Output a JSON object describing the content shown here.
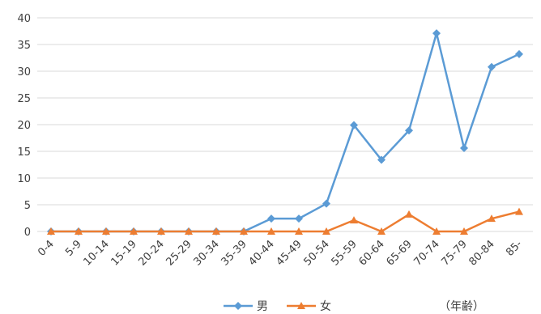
{
  "chart_data": {
    "type": "line",
    "categories": [
      "0-4",
      "5-9",
      "10-14",
      "15-19",
      "20-24",
      "25-29",
      "30-34",
      "35-39",
      "40-44",
      "45-49",
      "50-54",
      "55-59",
      "60-64",
      "65-69",
      "70-74",
      "75-79",
      "80-84",
      "85-"
    ],
    "series": [
      {
        "name": "男",
        "color": "#5B9BD5",
        "marker": "diamond",
        "values": [
          0,
          0,
          0,
          0,
          0,
          0,
          0,
          0,
          2.4,
          2.4,
          5.2,
          19.9,
          13.4,
          18.9,
          37.1,
          15.6,
          30.8,
          33.2
        ]
      },
      {
        "name": "女",
        "color": "#ED7D31",
        "marker": "triangle",
        "values": [
          0,
          0,
          0,
          0,
          0,
          0,
          0,
          0,
          0,
          0,
          0,
          2.1,
          0,
          3.2,
          0,
          0,
          2.4,
          3.7
        ]
      }
    ],
    "ylim": [
      0,
      40
    ],
    "yticks": [
      0,
      5,
      10,
      15,
      20,
      25,
      30,
      35,
      40
    ],
    "grid": true,
    "legend_position": "bottom",
    "xlabel": "（年齢）",
    "gridline_color": "#D9D9D9"
  }
}
